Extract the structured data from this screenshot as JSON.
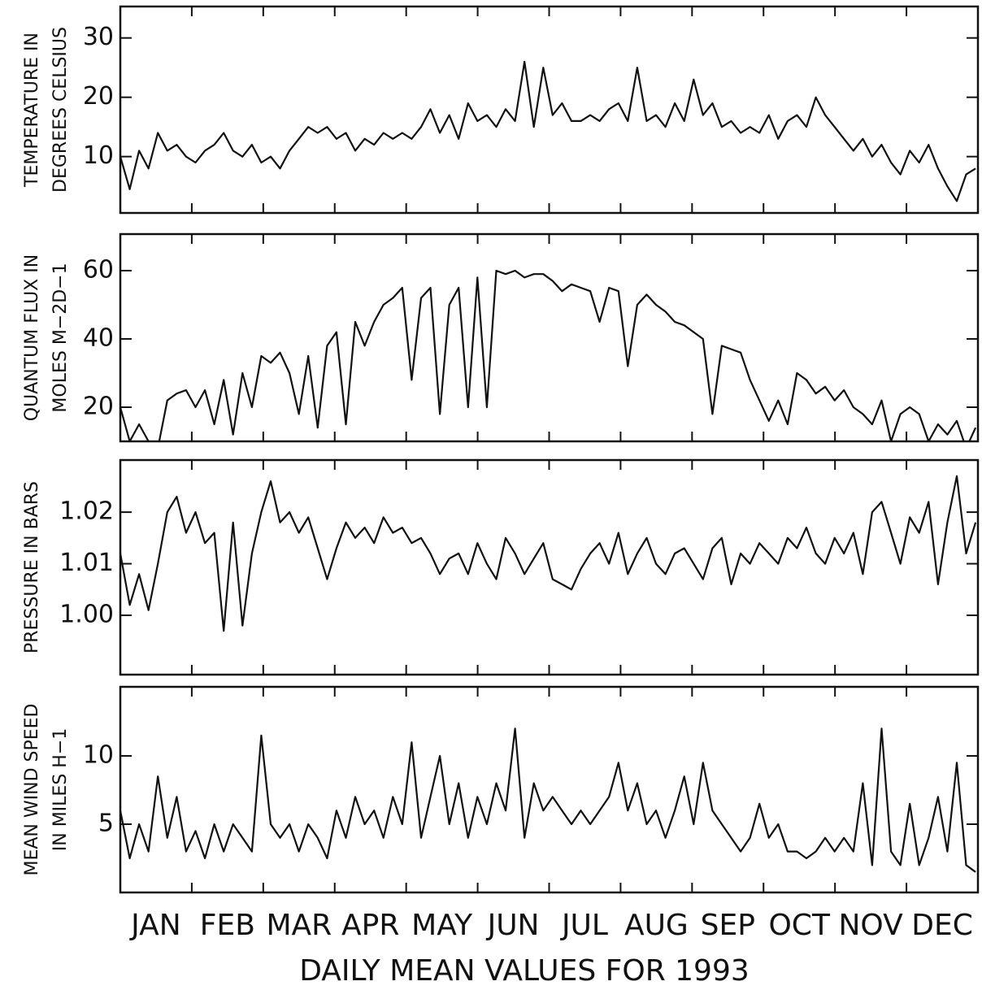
{
  "chart_data": {
    "type": "line",
    "title": "DAILY MEAN VALUES FOR 1993",
    "categories": [
      "JAN",
      "FEB",
      "MAR",
      "APR",
      "MAY",
      "JUN",
      "JUL",
      "AUG",
      "SEP",
      "OCT",
      "NOV",
      "DEC"
    ],
    "xlim": [
      1,
      366
    ],
    "x": [
      1,
      5,
      9,
      13,
      17,
      21,
      25,
      29,
      33,
      37,
      41,
      45,
      49,
      53,
      57,
      61,
      65,
      69,
      73,
      77,
      81,
      85,
      89,
      93,
      97,
      101,
      105,
      109,
      113,
      117,
      121,
      125,
      129,
      133,
      137,
      141,
      145,
      149,
      153,
      157,
      161,
      165,
      169,
      173,
      177,
      181,
      185,
      189,
      193,
      197,
      201,
      205,
      209,
      213,
      217,
      221,
      225,
      229,
      233,
      237,
      241,
      245,
      249,
      253,
      257,
      261,
      265,
      269,
      273,
      277,
      281,
      285,
      289,
      293,
      297,
      301,
      305,
      309,
      313,
      317,
      321,
      325,
      329,
      333,
      337,
      341,
      345,
      349,
      353,
      357,
      361,
      365
    ],
    "color": "#111111",
    "panels": [
      {
        "type": "line",
        "ylabel": [
          "TEMPERATURE IN",
          "DEGREES CELSIUS"
        ],
        "ylim": [
          0.5,
          35.3
        ],
        "yticks": [
          10,
          20,
          30
        ],
        "values": [
          10,
          4.5,
          11,
          8,
          14,
          11,
          12,
          10,
          9,
          11,
          12,
          14,
          11,
          10,
          12,
          9,
          10,
          8,
          11,
          13,
          15,
          14,
          15,
          13,
          14,
          11,
          13,
          12,
          14,
          13,
          14,
          13,
          15,
          18,
          14,
          17,
          13,
          19,
          16,
          17,
          15,
          18,
          16,
          26,
          15,
          25,
          17,
          19,
          16,
          16,
          17,
          16,
          18,
          19,
          16,
          25,
          16,
          17,
          15,
          19,
          16,
          23,
          17,
          19,
          15,
          16,
          14,
          15,
          14,
          17,
          13,
          16,
          17,
          15,
          20,
          17,
          15,
          13,
          11,
          13,
          10,
          12,
          9,
          7,
          11,
          9,
          12,
          8,
          5,
          2.5,
          7,
          8
        ]
      },
      {
        "type": "line",
        "ylabel": [
          "QUANTUM FLUX IN",
          "MOLES M−2D−1"
        ],
        "ylim": [
          10,
          70.7
        ],
        "yticks": [
          20,
          40,
          60
        ],
        "values": [
          20,
          10,
          15,
          10,
          8,
          22,
          24,
          25,
          20,
          25,
          15,
          28,
          12,
          30,
          20,
          35,
          33,
          36,
          30,
          18,
          35,
          14,
          38,
          42,
          15,
          45,
          38,
          45,
          50,
          52,
          55,
          28,
          52,
          55,
          18,
          50,
          55,
          20,
          58,
          20,
          60,
          59,
          60,
          58,
          59,
          59,
          57,
          54,
          56,
          55,
          54,
          45,
          55,
          54,
          32,
          50,
          53,
          50,
          48,
          45,
          44,
          42,
          40,
          18,
          38,
          37,
          36,
          28,
          22,
          16,
          22,
          15,
          30,
          28,
          24,
          26,
          22,
          25,
          20,
          18,
          15,
          22,
          10,
          18,
          20,
          18,
          10,
          15,
          12,
          16,
          8,
          14
        ]
      },
      {
        "type": "line",
        "ylabel": [
          "PRESSURE IN BARS"
        ],
        "ylim": [
          0.9885,
          1.0301
        ],
        "yticks": [
          {
            "value": 1,
            "label": "1.00"
          },
          1.01,
          1.02
        ],
        "values": [
          1.012,
          1.002,
          1.008,
          1.001,
          1.01,
          1.02,
          1.023,
          1.016,
          1.02,
          1.014,
          1.016,
          0.997,
          1.018,
          0.998,
          1.012,
          1.02,
          1.026,
          1.018,
          1.02,
          1.016,
          1.019,
          1.013,
          1.007,
          1.013,
          1.018,
          1.015,
          1.017,
          1.014,
          1.019,
          1.016,
          1.017,
          1.014,
          1.015,
          1.012,
          1.008,
          1.011,
          1.012,
          1.008,
          1.014,
          1.01,
          1.007,
          1.015,
          1.012,
          1.008,
          1.011,
          1.014,
          1.007,
          1.006,
          1.005,
          1.009,
          1.012,
          1.014,
          1.01,
          1.016,
          1.008,
          1.012,
          1.015,
          1.01,
          1.008,
          1.012,
          1.013,
          1.01,
          1.007,
          1.013,
          1.015,
          1.006,
          1.012,
          1.01,
          1.014,
          1.012,
          1.01,
          1.015,
          1.013,
          1.017,
          1.012,
          1.01,
          1.015,
          1.012,
          1.016,
          1.008,
          1.02,
          1.022,
          1.016,
          1.01,
          1.019,
          1.016,
          1.022,
          1.006,
          1.018,
          1.027,
          1.012,
          1.018
        ]
      },
      {
        "type": "line",
        "ylabel": [
          "MEAN WIND SPEED",
          "IN MILES H−1"
        ],
        "ylim": [
          0,
          15.06
        ],
        "yticks": [
          5,
          10
        ],
        "values": [
          6,
          2.5,
          5,
          3,
          8.5,
          4,
          7,
          3,
          4.5,
          2.5,
          5,
          3,
          5,
          4,
          3,
          11.5,
          5,
          4,
          5,
          3,
          5,
          4,
          2.5,
          6,
          4,
          7,
          5,
          6,
          4,
          7,
          5,
          11,
          4,
          7,
          10,
          5,
          8,
          4,
          7,
          5,
          8,
          6,
          12,
          4,
          8,
          6,
          7,
          6,
          5,
          6,
          5,
          6,
          7,
          9.5,
          6,
          8,
          5,
          6,
          4,
          6,
          8.5,
          5,
          9.5,
          6,
          5,
          4,
          3,
          4,
          6.5,
          4,
          5,
          3,
          3,
          2.5,
          3,
          4,
          3,
          4,
          3,
          8,
          2,
          12,
          3,
          2,
          6.5,
          2,
          4,
          7,
          3,
          9.5,
          2,
          1.5
        ]
      }
    ]
  }
}
